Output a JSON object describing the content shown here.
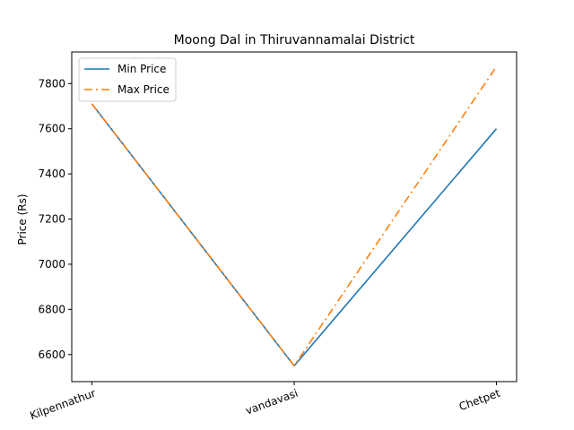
{
  "chart_data": {
    "type": "line",
    "title": "Moong Dal in Thiruvannamalai District",
    "xlabel": "",
    "ylabel": "Price (Rs)",
    "categories": [
      "Kilpennathur",
      "vandavasi",
      "Chetpet"
    ],
    "ylim": [
      6480,
      7940
    ],
    "yticks": [
      6600,
      6800,
      7000,
      7200,
      7400,
      7600,
      7800
    ],
    "legend_position": "top-left",
    "grid": false,
    "series": [
      {
        "name": "Min Price",
        "values": [
          7710,
          6550,
          7600
        ],
        "color": "#1f77b4",
        "dash": "solid"
      },
      {
        "name": "Max Price",
        "values": [
          7710,
          6550,
          7875
        ],
        "color": "#ff7f0e",
        "dash": "dashdot"
      }
    ]
  }
}
